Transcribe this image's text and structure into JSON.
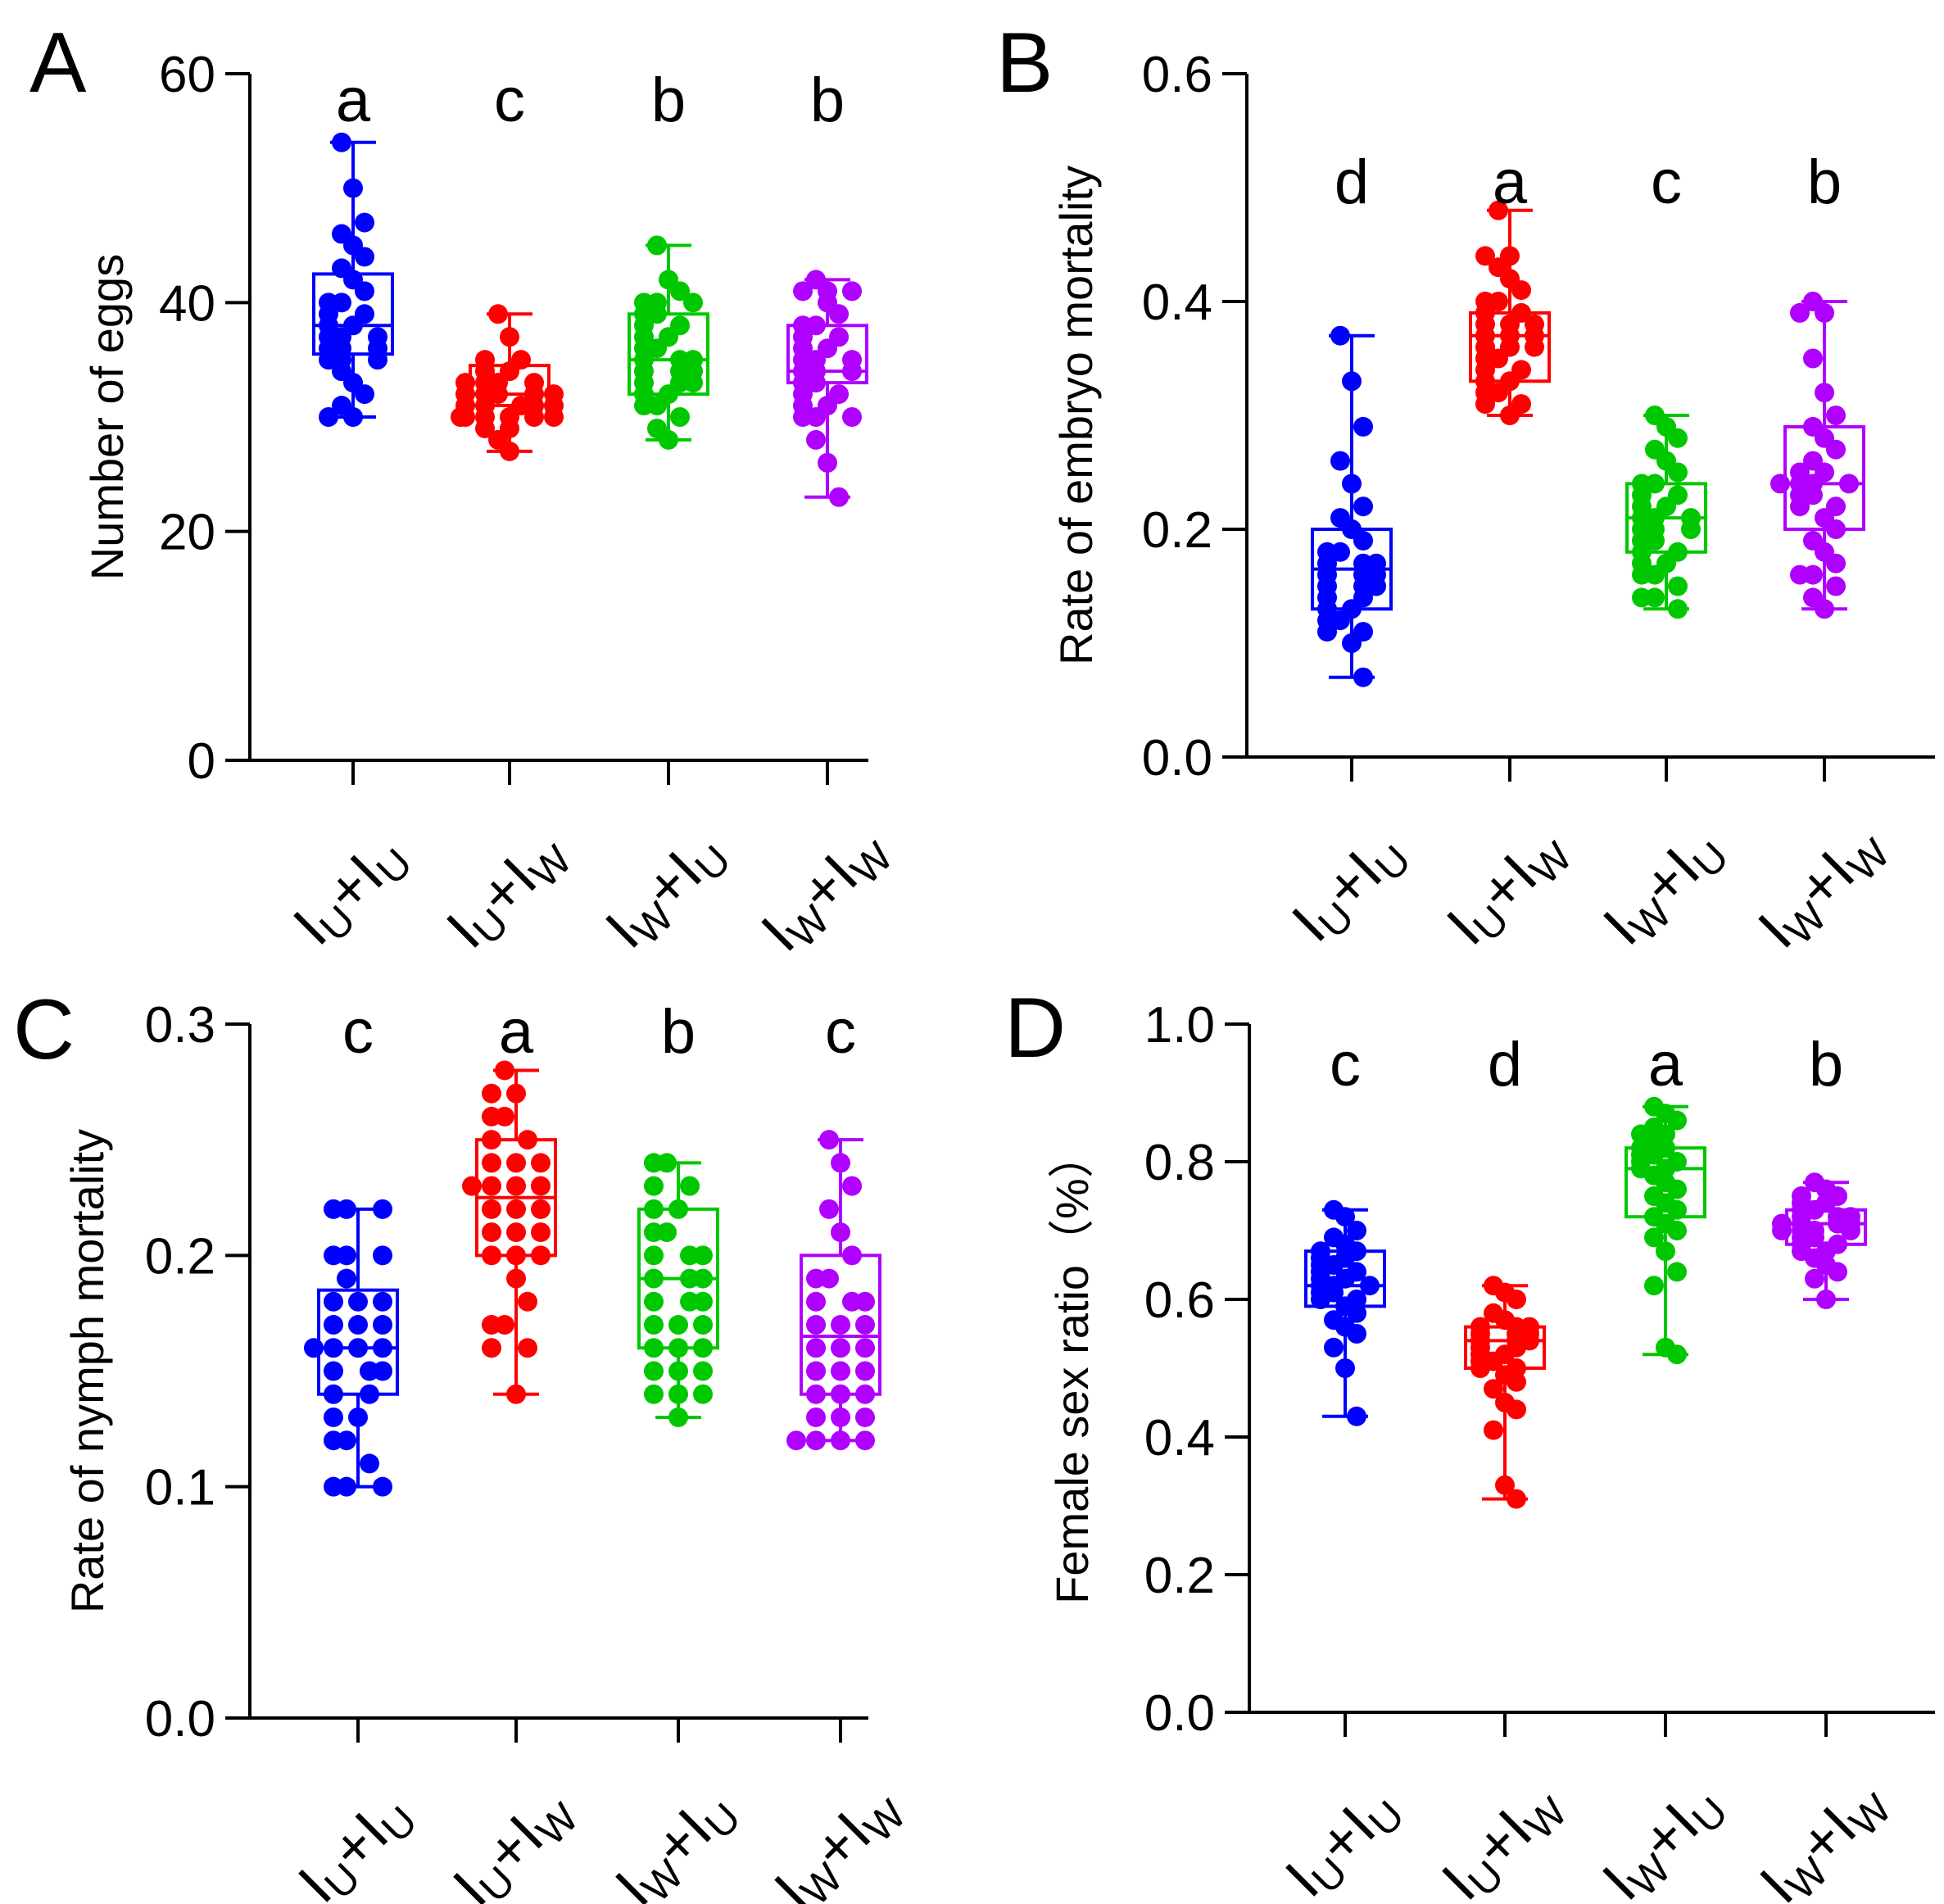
{
  "figure": {
    "colors": [
      "#0000ff",
      "#ff0000",
      "#00c800",
      "#b000ff"
    ],
    "icons": [
      "boxplot-with-points"
    ]
  },
  "chart_data": [
    {
      "type": "box",
      "panel_label": "A",
      "ylabel": "Number of eggs",
      "ylim": [
        0,
        60
      ],
      "yticks": [
        "0",
        "20",
        "40",
        "60"
      ],
      "categories": [
        {
          "main": "I",
          "sub": "U",
          "plus": "+",
          "main2": "I",
          "sub2": "U"
        },
        {
          "main": "I",
          "sub": "U",
          "plus": "+",
          "main2": "I",
          "sub2": "W"
        },
        {
          "main": "I",
          "sub": "W",
          "plus": "+",
          "main2": "I",
          "sub2": "U"
        },
        {
          "main": "I",
          "sub": "W",
          "plus": "+",
          "main2": "I",
          "sub2": "W"
        }
      ],
      "letters": [
        "a",
        "c",
        "b",
        "b"
      ],
      "groups": [
        {
          "min": 30,
          "q1": 35.5,
          "median": 38,
          "q3": 42.5,
          "max": 54,
          "points": [
            54,
            50,
            47,
            46,
            45,
            44,
            43,
            42,
            41,
            40,
            40,
            39,
            39,
            38,
            38,
            37,
            37,
            37,
            36,
            36,
            36,
            35,
            35,
            35,
            34,
            33,
            32,
            31,
            30,
            30
          ]
        },
        {
          "min": 27,
          "q1": 31,
          "median": 32,
          "q3": 34.5,
          "max": 39,
          "points": [
            39,
            37,
            35,
            35,
            34,
            34,
            33,
            33,
            33,
            32,
            32,
            32,
            32,
            32,
            31,
            31,
            31,
            31,
            31,
            30,
            30,
            30,
            30,
            30,
            30,
            29,
            29,
            28,
            27,
            33
          ]
        },
        {
          "min": 28,
          "q1": 32,
          "median": 35,
          "q3": 39,
          "max": 45,
          "points": [
            45,
            42,
            41,
            40,
            40,
            40,
            39,
            39,
            38,
            38,
            37,
            37,
            36,
            36,
            35,
            35,
            35,
            34,
            34,
            34,
            33,
            33,
            32,
            32,
            31,
            31,
            30,
            29,
            28,
            33
          ]
        },
        {
          "min": 23,
          "q1": 33,
          "median": 34,
          "q3": 38,
          "max": 42,
          "points": [
            42,
            41,
            41,
            41,
            40,
            39,
            38,
            38,
            37,
            37,
            36,
            36,
            35,
            35,
            35,
            34,
            34,
            34,
            33,
            33,
            32,
            32,
            31,
            31,
            30,
            30,
            30,
            28,
            26,
            23
          ]
        }
      ]
    },
    {
      "type": "box",
      "panel_label": "B",
      "ylabel": "Rate of embryo mortality",
      "ylim": [
        0,
        0.6
      ],
      "yticks": [
        "0.0",
        "0.2",
        "0.4",
        "0.6"
      ],
      "categories": [
        {
          "main": "I",
          "sub": "U",
          "plus": "+",
          "main2": "I",
          "sub2": "U"
        },
        {
          "main": "I",
          "sub": "U",
          "plus": "+",
          "main2": "I",
          "sub2": "W"
        },
        {
          "main": "I",
          "sub": "W",
          "plus": "+",
          "main2": "I",
          "sub2": "U"
        },
        {
          "main": "I",
          "sub": "W",
          "plus": "+",
          "main2": "I",
          "sub2": "W"
        }
      ],
      "letters": [
        "d",
        "a",
        "c",
        "b"
      ],
      "groups": [
        {
          "min": 0.07,
          "q1": 0.13,
          "median": 0.165,
          "q3": 0.2,
          "max": 0.37,
          "points": [
            0.37,
            0.33,
            0.29,
            0.26,
            0.24,
            0.22,
            0.21,
            0.2,
            0.19,
            0.18,
            0.18,
            0.17,
            0.17,
            0.17,
            0.16,
            0.16,
            0.16,
            0.15,
            0.15,
            0.15,
            0.14,
            0.14,
            0.13,
            0.13,
            0.12,
            0.12,
            0.11,
            0.11,
            0.1,
            0.07
          ]
        },
        {
          "min": 0.3,
          "q1": 0.33,
          "median": 0.37,
          "q3": 0.39,
          "max": 0.48,
          "points": [
            0.48,
            0.44,
            0.44,
            0.43,
            0.42,
            0.41,
            0.4,
            0.4,
            0.39,
            0.39,
            0.38,
            0.38,
            0.38,
            0.37,
            0.37,
            0.37,
            0.36,
            0.36,
            0.35,
            0.35,
            0.34,
            0.34,
            0.33,
            0.33,
            0.32,
            0.32,
            0.31,
            0.31,
            0.3,
            0.36
          ]
        },
        {
          "min": 0.13,
          "q1": 0.18,
          "median": 0.21,
          "q3": 0.24,
          "max": 0.3,
          "points": [
            0.3,
            0.29,
            0.28,
            0.27,
            0.26,
            0.25,
            0.24,
            0.24,
            0.23,
            0.23,
            0.22,
            0.22,
            0.21,
            0.21,
            0.21,
            0.2,
            0.2,
            0.2,
            0.19,
            0.19,
            0.18,
            0.18,
            0.17,
            0.17,
            0.16,
            0.16,
            0.15,
            0.14,
            0.14,
            0.13
          ]
        },
        {
          "min": 0.13,
          "q1": 0.2,
          "median": 0.24,
          "q3": 0.29,
          "max": 0.4,
          "points": [
            0.4,
            0.39,
            0.39,
            0.35,
            0.32,
            0.3,
            0.29,
            0.28,
            0.27,
            0.26,
            0.25,
            0.25,
            0.24,
            0.24,
            0.24,
            0.23,
            0.23,
            0.22,
            0.22,
            0.21,
            0.2,
            0.19,
            0.18,
            0.17,
            0.16,
            0.16,
            0.15,
            0.14,
            0.13,
            0.24
          ]
        }
      ]
    },
    {
      "type": "box",
      "panel_label": "C",
      "ylabel": "Rate of nymph mortality",
      "ylim": [
        0,
        0.3
      ],
      "yticks": [
        "0.0",
        "0.1",
        "0.2",
        "0.3"
      ],
      "categories": [
        {
          "main": "I",
          "sub": "U",
          "plus": "+",
          "main2": "I",
          "sub2": "U"
        },
        {
          "main": "I",
          "sub": "U",
          "plus": "+",
          "main2": "I",
          "sub2": "W"
        },
        {
          "main": "I",
          "sub": "W",
          "plus": "+",
          "main2": "I",
          "sub2": "U"
        },
        {
          "main": "I",
          "sub": "W",
          "plus": "+",
          "main2": "I",
          "sub2": "W"
        }
      ],
      "letters": [
        "c",
        "a",
        "b",
        "c"
      ],
      "groups": [
        {
          "min": 0.1,
          "q1": 0.14,
          "median": 0.16,
          "q3": 0.185,
          "max": 0.22,
          "points": [
            0.22,
            0.22,
            0.22,
            0.2,
            0.2,
            0.2,
            0.19,
            0.18,
            0.18,
            0.18,
            0.17,
            0.17,
            0.17,
            0.16,
            0.16,
            0.16,
            0.16,
            0.15,
            0.15,
            0.15,
            0.14,
            0.14,
            0.13,
            0.13,
            0.12,
            0.12,
            0.11,
            0.1,
            0.1,
            0.1
          ]
        },
        {
          "min": 0.14,
          "q1": 0.2,
          "median": 0.225,
          "q3": 0.25,
          "max": 0.28,
          "points": [
            0.28,
            0.27,
            0.27,
            0.26,
            0.26,
            0.25,
            0.25,
            0.24,
            0.24,
            0.24,
            0.23,
            0.23,
            0.23,
            0.22,
            0.22,
            0.22,
            0.21,
            0.21,
            0.21,
            0.2,
            0.2,
            0.2,
            0.19,
            0.18,
            0.17,
            0.17,
            0.16,
            0.16,
            0.14,
            0.23
          ]
        },
        {
          "min": 0.13,
          "q1": 0.16,
          "median": 0.19,
          "q3": 0.22,
          "max": 0.24,
          "points": [
            0.24,
            0.24,
            0.23,
            0.23,
            0.22,
            0.22,
            0.21,
            0.21,
            0.2,
            0.2,
            0.2,
            0.19,
            0.19,
            0.19,
            0.18,
            0.18,
            0.17,
            0.17,
            0.17,
            0.16,
            0.16,
            0.16,
            0.15,
            0.15,
            0.15,
            0.14,
            0.14,
            0.14,
            0.13,
            0.18
          ]
        },
        {
          "min": 0.12,
          "q1": 0.14,
          "median": 0.165,
          "q3": 0.2,
          "max": 0.25,
          "points": [
            0.25,
            0.24,
            0.23,
            0.22,
            0.21,
            0.2,
            0.19,
            0.19,
            0.18,
            0.18,
            0.17,
            0.17,
            0.17,
            0.16,
            0.16,
            0.16,
            0.15,
            0.15,
            0.15,
            0.14,
            0.14,
            0.14,
            0.13,
            0.13,
            0.13,
            0.12,
            0.12,
            0.12,
            0.12,
            0.18
          ]
        }
      ]
    },
    {
      "type": "box",
      "panel_label": "D",
      "ylabel": "Female sex ratio（%）",
      "ylim": [
        0,
        1.0
      ],
      "yticks": [
        "0.0",
        "0.2",
        "0.4",
        "0.6",
        "0.8",
        "1.0"
      ],
      "categories": [
        {
          "main": "I",
          "sub": "U",
          "plus": "+",
          "main2": "I",
          "sub2": "U"
        },
        {
          "main": "I",
          "sub": "U",
          "plus": "+",
          "main2": "I",
          "sub2": "W"
        },
        {
          "main": "I",
          "sub": "W",
          "plus": "+",
          "main2": "I",
          "sub2": "U"
        },
        {
          "main": "I",
          "sub": "W",
          "plus": "+",
          "main2": "I",
          "sub2": "W"
        }
      ],
      "letters": [
        "c",
        "d",
        "a",
        "b"
      ],
      "groups": [
        {
          "min": 0.43,
          "q1": 0.59,
          "median": 0.62,
          "q3": 0.67,
          "max": 0.73,
          "points": [
            0.73,
            0.72,
            0.7,
            0.69,
            0.68,
            0.67,
            0.67,
            0.66,
            0.66,
            0.65,
            0.65,
            0.64,
            0.64,
            0.63,
            0.63,
            0.62,
            0.62,
            0.62,
            0.61,
            0.61,
            0.6,
            0.6,
            0.59,
            0.58,
            0.57,
            0.56,
            0.55,
            0.53,
            0.5,
            0.43
          ]
        },
        {
          "min": 0.31,
          "q1": 0.5,
          "median": 0.54,
          "q3": 0.56,
          "max": 0.62,
          "points": [
            0.62,
            0.61,
            0.6,
            0.58,
            0.57,
            0.56,
            0.56,
            0.56,
            0.55,
            0.55,
            0.55,
            0.54,
            0.54,
            0.54,
            0.53,
            0.53,
            0.52,
            0.52,
            0.51,
            0.51,
            0.5,
            0.5,
            0.49,
            0.48,
            0.47,
            0.45,
            0.44,
            0.41,
            0.33,
            0.31
          ]
        },
        {
          "min": 0.52,
          "q1": 0.72,
          "median": 0.79,
          "q3": 0.82,
          "max": 0.88,
          "points": [
            0.88,
            0.87,
            0.86,
            0.85,
            0.84,
            0.84,
            0.83,
            0.82,
            0.82,
            0.81,
            0.81,
            0.8,
            0.8,
            0.79,
            0.79,
            0.78,
            0.77,
            0.76,
            0.75,
            0.74,
            0.73,
            0.72,
            0.71,
            0.7,
            0.69,
            0.67,
            0.64,
            0.62,
            0.53,
            0.52
          ]
        },
        {
          "min": 0.6,
          "q1": 0.68,
          "median": 0.71,
          "q3": 0.73,
          "max": 0.77,
          "points": [
            0.77,
            0.76,
            0.75,
            0.75,
            0.74,
            0.74,
            0.73,
            0.73,
            0.72,
            0.72,
            0.72,
            0.71,
            0.71,
            0.71,
            0.71,
            0.7,
            0.7,
            0.7,
            0.69,
            0.69,
            0.68,
            0.68,
            0.67,
            0.67,
            0.66,
            0.65,
            0.64,
            0.63,
            0.6,
            0.7
          ]
        }
      ]
    }
  ]
}
